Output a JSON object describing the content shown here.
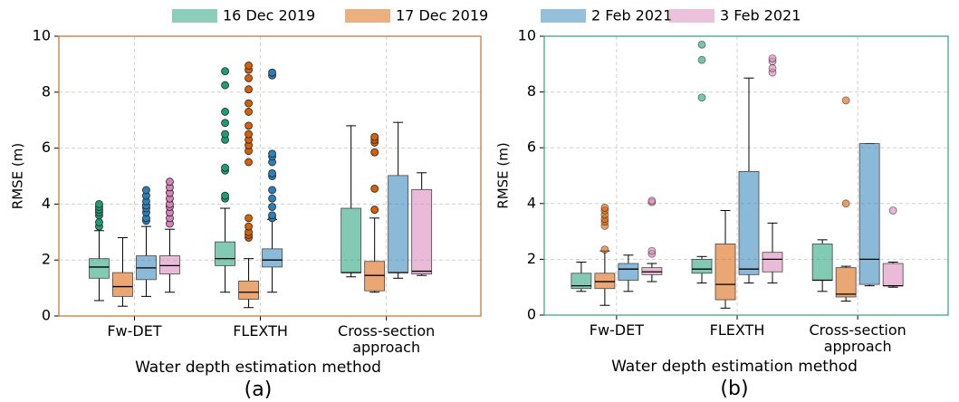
{
  "chart_data": {
    "type": "box",
    "x_label": "Water depth estimation method",
    "y_label": "RMSE (m)",
    "categories": [
      "Fw-DET",
      "FLEXTH",
      "Cross-section approach"
    ],
    "ylim": [
      0,
      10
    ],
    "yticks": [
      0,
      2,
      4,
      6,
      8,
      10
    ],
    "grid": true,
    "legend": "top",
    "panels": [
      {
        "caption": "(a)",
        "frame_color": "#c8793a",
        "flier_alpha": 1
      },
      {
        "caption": "(b)",
        "frame_color": "#3aa88a",
        "flier_alpha": 0.6
      }
    ],
    "series": [
      {
        "name": "16 Dec 2019",
        "color": "#1b9e77",
        "values": [
          [
            {
              "whislo": 0.55,
              "q1": 1.35,
              "med": 1.75,
              "q3": 2.05,
              "whishi": 3.05,
              "fliers": [
                3.2,
                3.35,
                3.6,
                3.7,
                3.8,
                3.9,
                4.0
              ]
            },
            {
              "whislo": 0.85,
              "q1": 1.8,
              "med": 2.05,
              "q3": 2.65,
              "whishi": 3.85,
              "fliers": [
                4.2,
                4.3,
                5.2,
                5.3,
                6.3,
                6.5,
                6.9,
                7.3,
                8.25,
                8.75
              ]
            },
            {
              "whislo": 1.4,
              "q1": 1.55,
              "med": 1.55,
              "q3": 3.85,
              "whishi": 6.8,
              "fliers": []
            }
          ],
          [
            {
              "whislo": 0.85,
              "q1": 0.95,
              "med": 1.05,
              "q3": 1.5,
              "whishi": 1.9,
              "fliers": []
            },
            {
              "whislo": 1.15,
              "q1": 1.5,
              "med": 1.65,
              "q3": 2.0,
              "whishi": 2.1,
              "fliers": [
                7.8,
                9.15,
                9.7
              ]
            },
            {
              "whislo": 0.85,
              "q1": 1.25,
              "med": 1.25,
              "q3": 2.55,
              "whishi": 2.7,
              "fliers": []
            }
          ]
        ]
      },
      {
        "name": "17 Dec 2019",
        "color": "#d95f02",
        "values": [
          [
            {
              "whislo": 0.35,
              "q1": 0.7,
              "med": 1.05,
              "q3": 1.55,
              "whishi": 2.8,
              "fliers": []
            },
            {
              "whislo": 0.3,
              "q1": 0.6,
              "med": 0.85,
              "q3": 1.25,
              "whishi": 2.05,
              "fliers": [
                2.8,
                2.9,
                3.0,
                3.2,
                3.5,
                5.5,
                5.9,
                6.1,
                6.3,
                6.5,
                6.8,
                7.3,
                7.6,
                8.1,
                8.5,
                8.8,
                8.95
              ]
            },
            {
              "whislo": 0.85,
              "q1": 0.9,
              "med": 1.45,
              "q3": 1.95,
              "whishi": 3.5,
              "fliers": [
                3.8,
                4.55,
                5.85,
                6.2,
                6.3,
                6.4
              ]
            }
          ],
          [
            {
              "whislo": 0.35,
              "q1": 0.95,
              "med": 1.2,
              "q3": 1.5,
              "whishi": 2.3,
              "fliers": [
                2.35,
                3.2,
                3.35,
                3.45,
                3.6,
                3.75,
                3.85
              ]
            },
            {
              "whislo": 0.25,
              "q1": 0.55,
              "med": 1.1,
              "q3": 2.55,
              "whishi": 3.75,
              "fliers": []
            },
            {
              "whislo": 0.5,
              "q1": 0.65,
              "med": 0.75,
              "q3": 1.7,
              "whishi": 1.75,
              "fliers": [
                4.0,
                7.7
              ]
            }
          ]
        ]
      },
      {
        "name": "2 Feb 2021",
        "color": "#2c7fb8",
        "values": [
          [
            {
              "whislo": 0.7,
              "q1": 1.3,
              "med": 1.72,
              "q3": 2.15,
              "whishi": 3.2,
              "fliers": [
                3.4,
                3.5,
                3.7,
                3.85,
                3.95,
                4.1,
                4.3,
                4.5
              ]
            },
            {
              "whislo": 0.85,
              "q1": 1.75,
              "med": 2.0,
              "q3": 2.4,
              "whishi": 3.45,
              "fliers": [
                3.5,
                3.6,
                3.9,
                4.2,
                4.5,
                5.0,
                5.1,
                5.5,
                5.7,
                5.8,
                8.6,
                8.7
              ]
            },
            {
              "whislo": 1.35,
              "q1": 1.55,
              "med": 1.55,
              "q3": 5.02,
              "whishi": 6.92,
              "fliers": []
            }
          ],
          [
            {
              "whislo": 0.85,
              "q1": 1.25,
              "med": 1.65,
              "q3": 1.85,
              "whishi": 2.15,
              "fliers": []
            },
            {
              "whislo": 1.15,
              "q1": 1.45,
              "med": 1.65,
              "q3": 5.15,
              "whishi": 8.5,
              "fliers": []
            },
            {
              "whislo": 1.05,
              "q1": 1.1,
              "med": 2.0,
              "q3": 6.15,
              "whishi": 6.15,
              "fliers": []
            }
          ]
        ]
      },
      {
        "name": "3 Feb 2021",
        "color": "#d883b8",
        "values": [
          [
            {
              "whislo": 0.85,
              "q1": 1.5,
              "med": 1.8,
              "q3": 2.15,
              "whishi": 3.1,
              "fliers": [
                3.3,
                3.5,
                3.7,
                3.9,
                4.0,
                4.2,
                4.4,
                4.6,
                4.8
              ]
            },
            null,
            {
              "whislo": 1.45,
              "q1": 1.5,
              "med": 1.6,
              "q3": 4.52,
              "whishi": 5.12,
              "fliers": []
            }
          ],
          [
            {
              "whislo": 1.2,
              "q1": 1.45,
              "med": 1.55,
              "q3": 1.7,
              "whishi": 1.85,
              "fliers": [
                2.2,
                2.3,
                4.05,
                4.1
              ]
            },
            {
              "whislo": 1.15,
              "q1": 1.55,
              "med": 2.0,
              "q3": 2.25,
              "whishi": 3.3,
              "fliers": [
                8.7,
                8.85,
                9.1,
                9.2
              ]
            },
            {
              "whislo": 1.0,
              "q1": 1.05,
              "med": 1.05,
              "q3": 1.85,
              "whishi": 1.9,
              "fliers": [
                3.75
              ]
            }
          ]
        ]
      }
    ]
  }
}
